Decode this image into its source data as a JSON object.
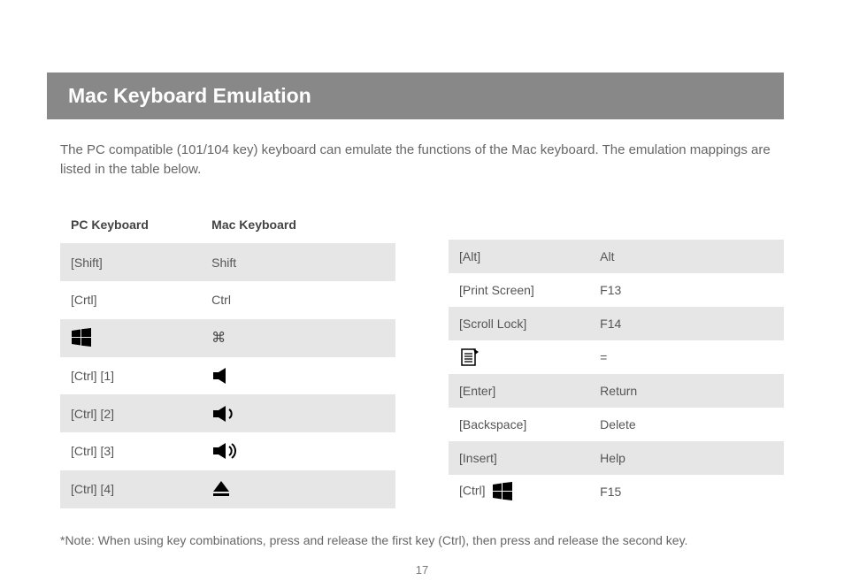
{
  "title": "Mac Keyboard Emulation",
  "intro": "The PC compatible (101/104 key) keyboard can emulate the functions of the Mac keyboard. The emulation mappings are listed in the table below.",
  "headers": {
    "pc": "PC Keyboard",
    "mac": "Mac Keyboard"
  },
  "left": [
    {
      "pc": "[Shift]",
      "mac": "Shift"
    },
    {
      "pc": "[Crtl]",
      "mac": "Ctrl"
    },
    {
      "pc_icon": "windows",
      "mac_icon": "command"
    },
    {
      "pc": "[Ctrl] [1]",
      "mac_icon": "mute"
    },
    {
      "pc": "[Ctrl] [2]",
      "mac_icon": "vol-down"
    },
    {
      "pc": "[Ctrl] [3]",
      "mac_icon": "vol-up"
    },
    {
      "pc": "[Ctrl] [4]",
      "mac_icon": "eject"
    }
  ],
  "right": [
    {
      "pc": "[Alt]",
      "mac": "Alt"
    },
    {
      "pc": "[Print Screen]",
      "mac": "F13"
    },
    {
      "pc": "[Scroll Lock]",
      "mac": "F14"
    },
    {
      "pc_icon": "menu",
      "mac": "="
    },
    {
      "pc": "[Enter]",
      "mac": "Return"
    },
    {
      "pc": "[Backspace]",
      "mac": "Delete"
    },
    {
      "pc": "[Insert]",
      "mac": "Help"
    },
    {
      "pc": "[Ctrl]",
      "pc_icon_after": "windows",
      "mac": "F15"
    }
  ],
  "note": "*Note: When using key combinations, press and release the first key (Ctrl), then press and release the second key.",
  "page_number": "17",
  "colors": {
    "title_bg": "#888888",
    "title_fg": "#ffffff",
    "row_alt_bg": "#e6e6e6",
    "text": "#555555",
    "icon": "#000000"
  },
  "font_sizes": {
    "title": 23,
    "body": 15,
    "cell": 14,
    "note": 14,
    "pagenum": 13
  }
}
